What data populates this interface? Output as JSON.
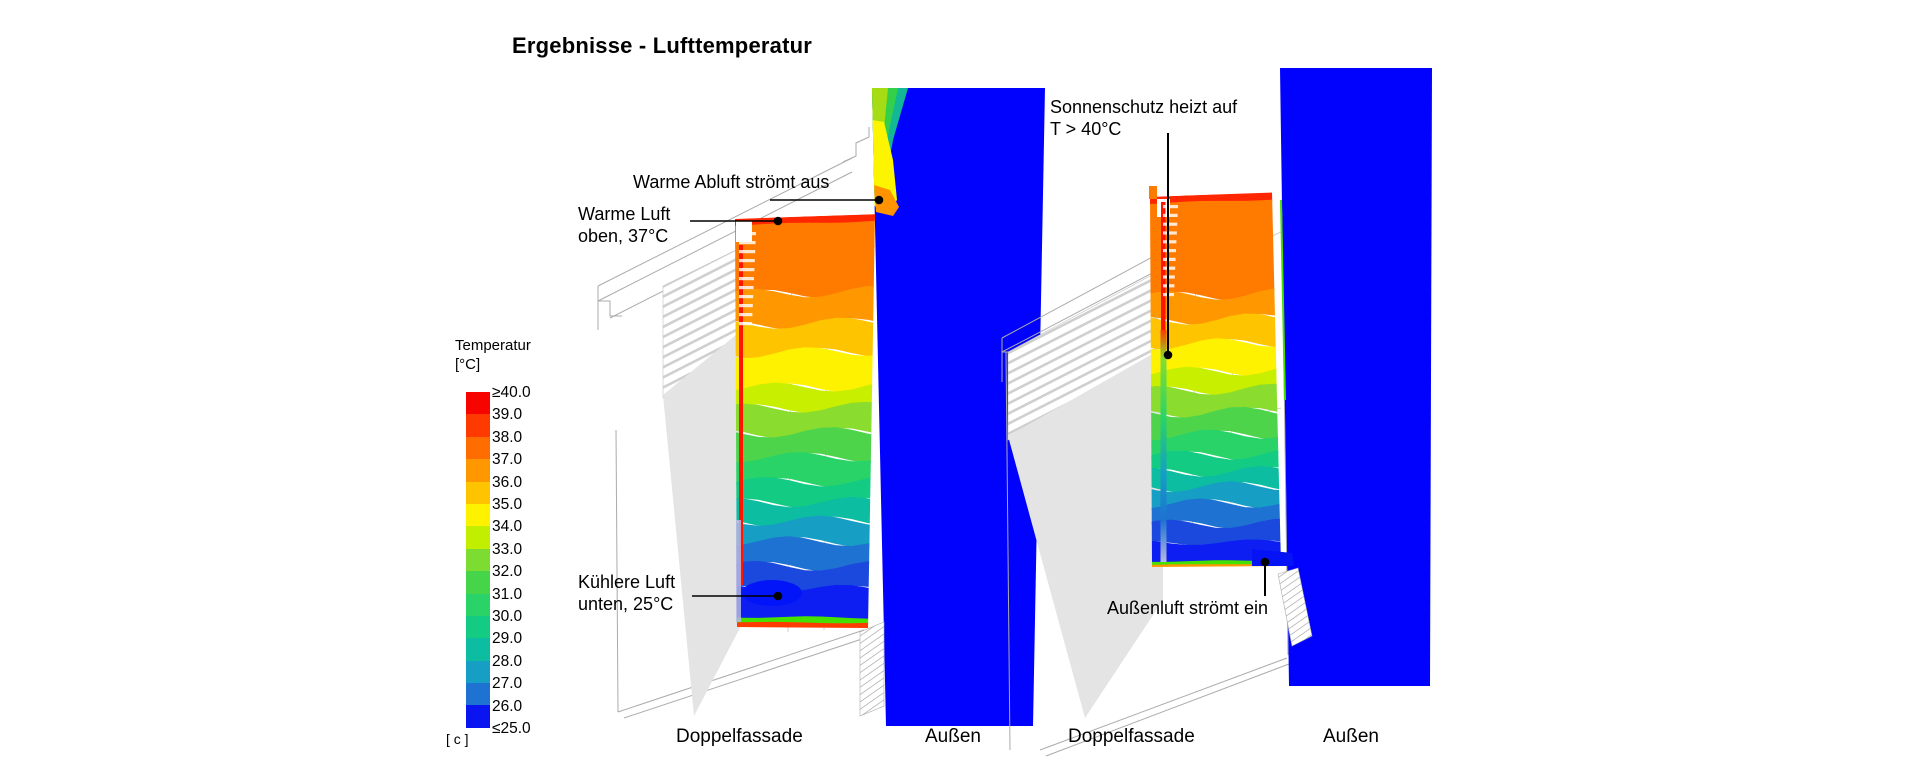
{
  "title": "Ergebnisse - Lufttemperatur",
  "legend": {
    "title": "Temperatur",
    "unit": "[°C]",
    "corner_note": "[ c ]",
    "ticks": [
      "≥40.0",
      "39.0",
      "38.0",
      "37.0",
      "36.0",
      "35.0",
      "34.0",
      "33.0",
      "32.0",
      "31.0",
      "30.0",
      "29.0",
      "28.0",
      "27.0",
      "26.0",
      "≤25.0"
    ],
    "segment_colors": [
      "#f80400",
      "#ff3a00",
      "#ff6d00",
      "#ff9800",
      "#ffc400",
      "#fff200",
      "#c2ee00",
      "#7cdc32",
      "#46d44b",
      "#2ad368",
      "#14cb84",
      "#0cbda1",
      "#169ec4",
      "#1e72d2",
      "#0a14f0"
    ]
  },
  "annotations": {
    "warme_abluft": "Warme Abluft strömt aus",
    "warme_luft_1": "Warme Luft",
    "warme_luft_2": "oben, 37°C",
    "kuehlere_luft_1": "Kühlere Luft",
    "kuehlere_luft_2": "unten, 25°C",
    "sonnenschutz_1": "Sonnenschutz heizt auf",
    "sonnenschutz_2": "T > 40°C",
    "aussenluft": "Außenluft strömt ein"
  },
  "views": {
    "left": {
      "label_facade": "Doppelfassade",
      "label_outside": "Außen",
      "outside_color": "#0102fe",
      "bands": [
        {
          "c": "#ff2600",
          "to": 0.016
        },
        {
          "c": "#ff7b00",
          "to": 0.185
        },
        {
          "c": "#ff9800",
          "to": 0.26
        },
        {
          "c": "#ffc400",
          "to": 0.33
        },
        {
          "c": "#fff200",
          "to": 0.415
        },
        {
          "c": "#c8ee00",
          "to": 0.465
        },
        {
          "c": "#8adc2e",
          "to": 0.525
        },
        {
          "c": "#4ed44b",
          "to": 0.585
        },
        {
          "c": "#2ad368",
          "to": 0.645
        },
        {
          "c": "#14cb84",
          "to": 0.695
        },
        {
          "c": "#0cbda1",
          "to": 0.74
        },
        {
          "c": "#169ec4",
          "to": 0.79
        },
        {
          "c": "#1e72d2",
          "to": 0.85
        },
        {
          "c": "#1b49de",
          "to": 0.905
        },
        {
          "c": "#0c1ef2",
          "to": 0.975
        },
        {
          "c": "#46e000",
          "to": 0.988
        },
        {
          "c": "#ff3c00",
          "to": 1.0
        }
      ]
    },
    "right": {
      "label_facade": "Doppelfassade",
      "label_outside": "Außen",
      "outside_color": "#0102fe",
      "bands": [
        {
          "c": "#ff2600",
          "to": 0.018
        },
        {
          "c": "#ff7b00",
          "to": 0.27
        },
        {
          "c": "#ff9800",
          "to": 0.335
        },
        {
          "c": "#ffc400",
          "to": 0.4
        },
        {
          "c": "#fff200",
          "to": 0.475
        },
        {
          "c": "#c8ee00",
          "to": 0.525
        },
        {
          "c": "#8adc2e",
          "to": 0.585
        },
        {
          "c": "#4ed44b",
          "to": 0.645
        },
        {
          "c": "#2ad368",
          "to": 0.7
        },
        {
          "c": "#14cb84",
          "to": 0.745
        },
        {
          "c": "#0cbda1",
          "to": 0.785
        },
        {
          "c": "#169ec4",
          "to": 0.83
        },
        {
          "c": "#1e72d2",
          "to": 0.885
        },
        {
          "c": "#1b49de",
          "to": 0.935
        },
        {
          "c": "#0c1ef2",
          "to": 0.985
        },
        {
          "c": "#46e000",
          "to": 0.994
        },
        {
          "c": "#ff9800",
          "to": 1.0
        }
      ]
    }
  },
  "chart_data": {
    "type": "heatmap",
    "title": "Ergebnisse - Lufttemperatur",
    "colorbar": {
      "label": "Temperatur [°C]",
      "ticks": [
        "≥40.0",
        "39.0",
        "38.0",
        "37.0",
        "36.0",
        "35.0",
        "34.0",
        "33.0",
        "32.0",
        "31.0",
        "30.0",
        "29.0",
        "28.0",
        "27.0",
        "26.0",
        "≤25.0"
      ],
      "colors": [
        "#f80400",
        "#ff3a00",
        "#ff6d00",
        "#ff9800",
        "#ffc400",
        "#fff200",
        "#c2ee00",
        "#7cdc32",
        "#46d44b",
        "#2ad368",
        "#14cb84",
        "#0cbda1",
        "#169ec4",
        "#1e72d2",
        "#0a14f0"
      ],
      "range_top": "≥40.0",
      "range_bottom": "≤25.0",
      "unit_note": "[ c ]"
    },
    "panels": [
      {
        "x_labels": [
          "Doppelfassade",
          "Außen"
        ],
        "annotations": [
          "Warme Abluft strömt aus",
          "Warme Luft oben, 37°C",
          "Kühlere Luft unten, 25°C"
        ],
        "readings": {
          "oben": 37,
          "unten": 25,
          "aussen": "≤25"
        }
      },
      {
        "x_labels": [
          "Doppelfassade",
          "Außen"
        ],
        "annotations": [
          "Sonnenschutz heizt auf T > 40°C",
          "Außenluft strömt ein"
        ],
        "readings": {
          "sonnenschutz": ">40",
          "aussen": "≤25"
        }
      }
    ],
    "legend_position": "left",
    "grid": false
  }
}
